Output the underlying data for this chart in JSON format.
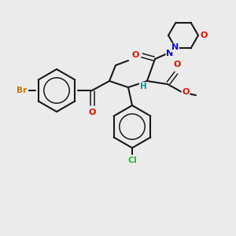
{
  "background_color": "#ebebeb",
  "bond_color": "#1a1a1a",
  "atom_colors": {
    "Br": "#cc7700",
    "O": "#dd1100",
    "N": "#1111cc",
    "Cl": "#33bb33",
    "H": "#009999"
  },
  "figsize": [
    3.0,
    3.0
  ],
  "dpi": 100
}
